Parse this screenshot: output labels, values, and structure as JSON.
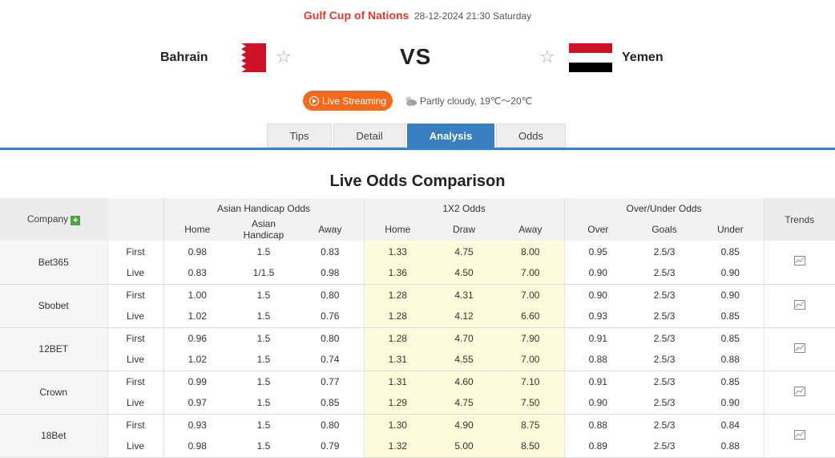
{
  "match": {
    "competition": "Gulf Cup of Nations",
    "datetime": "28-12-2024 21:30 Saturday",
    "home_team": "Bahrain",
    "away_team": "Yemen",
    "vs": "VS"
  },
  "live_button": "Live Streaming",
  "weather": "Partly cloudy, 19℃～20℃",
  "tabs": [
    "Tips",
    "Detail",
    "Analysis",
    "Odds"
  ],
  "active_tab": "Analysis",
  "section_title": "Live Odds Comparison",
  "table": {
    "company_header": "Company",
    "trends_header": "Trends",
    "groups": [
      "Asian Handicap Odds",
      "1X2 Odds",
      "Over/Under Odds"
    ],
    "subheaders": [
      "Home",
      "Asian Handicap",
      "Away",
      "Home",
      "Draw",
      "Away",
      "Over",
      "Goals",
      "Under"
    ],
    "rows": [
      {
        "company": "Bet365",
        "lines": [
          {
            "type": "First",
            "ah": [
              "0.98",
              "1.5",
              "0.83"
            ],
            "x12": [
              "1.33",
              "4.75",
              "8.00"
            ],
            "ou": [
              "0.95",
              "2.5/3",
              "0.85"
            ]
          },
          {
            "type": "Live",
            "ah": [
              "0.83",
              "1/1.5",
              "0.98"
            ],
            "x12": [
              "1.36",
              "4.50",
              "7.00"
            ],
            "ou": [
              "0.90",
              "2.5/3",
              "0.90"
            ]
          }
        ]
      },
      {
        "company": "Sbobet",
        "lines": [
          {
            "type": "First",
            "ah": [
              "1.00",
              "1.5",
              "0.80"
            ],
            "x12": [
              "1.28",
              "4.31",
              "7.00"
            ],
            "ou": [
              "0.90",
              "2.5/3",
              "0.90"
            ]
          },
          {
            "type": "Live",
            "ah": [
              "1.02",
              "1.5",
              "0.76"
            ],
            "x12": [
              "1.28",
              "4.12",
              "6.60"
            ],
            "ou": [
              "0.93",
              "2.5/3",
              "0.85"
            ]
          }
        ]
      },
      {
        "company": "12BET",
        "lines": [
          {
            "type": "First",
            "ah": [
              "0.96",
              "1.5",
              "0.80"
            ],
            "x12": [
              "1.28",
              "4.70",
              "7.90"
            ],
            "ou": [
              "0.91",
              "2.5/3",
              "0.85"
            ]
          },
          {
            "type": "Live",
            "ah": [
              "1.02",
              "1.5",
              "0.74"
            ],
            "x12": [
              "1.31",
              "4.55",
              "7.00"
            ],
            "ou": [
              "0.88",
              "2.5/3",
              "0.88"
            ]
          }
        ]
      },
      {
        "company": "Crown",
        "lines": [
          {
            "type": "First",
            "ah": [
              "0.99",
              "1.5",
              "0.77"
            ],
            "x12": [
              "1.31",
              "4.60",
              "7.10"
            ],
            "ou": [
              "0.91",
              "2.5/3",
              "0.85"
            ]
          },
          {
            "type": "Live",
            "ah": [
              "0.97",
              "1.5",
              "0.85"
            ],
            "x12": [
              "1.29",
              "4.75",
              "7.50"
            ],
            "ou": [
              "0.90",
              "2.5/3",
              "0.90"
            ]
          }
        ]
      },
      {
        "company": "18Bet",
        "lines": [
          {
            "type": "First",
            "ah": [
              "0.93",
              "1.5",
              "0.80"
            ],
            "x12": [
              "1.30",
              "4.90",
              "8.75"
            ],
            "ou": [
              "0.88",
              "2.5/3",
              "0.84"
            ]
          },
          {
            "type": "Live",
            "ah": [
              "0.98",
              "1.5",
              "0.79"
            ],
            "x12": [
              "1.32",
              "5.00",
              "8.50"
            ],
            "ou": [
              "0.89",
              "2.5/3",
              "0.88"
            ]
          }
        ]
      }
    ]
  },
  "colors": {
    "accent": "#3a7fc1",
    "competition": "#e03a2e",
    "live_button": "#f26a1b",
    "x12_highlight": "#fcfcdc"
  }
}
